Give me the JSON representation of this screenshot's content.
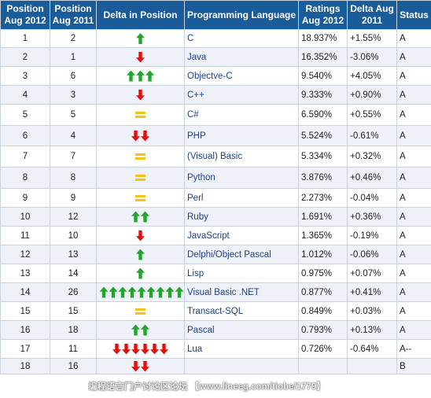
{
  "headers": {
    "pos_2012": "Position Aug 2012",
    "pos_2011": "Position Aug 2011",
    "delta_pos": "Delta in Position",
    "language": "Programming Language",
    "ratings": "Ratings Aug 2012",
    "delta_2011": "Delta Aug 2011",
    "status": "Status"
  },
  "rows": [
    {
      "p12": "1",
      "p11": "2",
      "lang": "C",
      "rating": "18.937%",
      "delta": "+1.55%",
      "status": "A",
      "move": "up",
      "count": 1
    },
    {
      "p12": "2",
      "p11": "1",
      "lang": "Java",
      "rating": "16.352%",
      "delta": "-3.06%",
      "status": "A",
      "move": "down",
      "count": 1
    },
    {
      "p12": "3",
      "p11": "6",
      "lang": "Objectve-C",
      "rating": "9.540%",
      "delta": "+4.05%",
      "status": "A",
      "move": "up",
      "count": 3
    },
    {
      "p12": "4",
      "p11": "3",
      "lang": "C++",
      "rating": "9.333%",
      "delta": "+0.90%",
      "status": "A",
      "move": "down",
      "count": 1
    },
    {
      "p12": "5",
      "p11": "5",
      "lang": "C#",
      "rating": "6.590%",
      "delta": "+0.55%",
      "status": "A",
      "move": "same",
      "count": 1
    },
    {
      "p12": "6",
      "p11": "4",
      "lang": "PHP",
      "rating": "5.524%",
      "delta": "-0.61%",
      "status": "A",
      "move": "down",
      "count": 2
    },
    {
      "p12": "7",
      "p11": "7",
      "lang": "(Visual) Basic",
      "rating": "5.334%",
      "delta": "+0.32%",
      "status": "A",
      "move": "same",
      "count": 1
    },
    {
      "p12": "8",
      "p11": "8",
      "lang": "Python",
      "rating": "3.876%",
      "delta": "+0.46%",
      "status": "A",
      "move": "same",
      "count": 1
    },
    {
      "p12": "9",
      "p11": "9",
      "lang": "Perl",
      "rating": "2.273%",
      "delta": "-0.04%",
      "status": "A",
      "move": "same",
      "count": 1
    },
    {
      "p12": "10",
      "p11": "12",
      "lang": "Ruby",
      "rating": "1.691%",
      "delta": "+0.36%",
      "status": "A",
      "move": "up",
      "count": 2
    },
    {
      "p12": "11",
      "p11": "10",
      "lang": "JavaScript",
      "rating": "1.365%",
      "delta": "-0.19%",
      "status": "A",
      "move": "down",
      "count": 1
    },
    {
      "p12": "12",
      "p11": "13",
      "lang": "Delphi/Object Pascal",
      "rating": "1.012%",
      "delta": "-0.06%",
      "status": "A",
      "move": "up",
      "count": 1
    },
    {
      "p12": "13",
      "p11": "14",
      "lang": "Lisp",
      "rating": "0.975%",
      "delta": "+0.07%",
      "status": "A",
      "move": "up",
      "count": 1
    },
    {
      "p12": "14",
      "p11": "26",
      "lang": "Visual Basic .NET",
      "rating": "0.877%",
      "delta": "+0.41%",
      "status": "A",
      "move": "up",
      "count": 10
    },
    {
      "p12": "15",
      "p11": "15",
      "lang": "Transact-SQL",
      "rating": "0.849%",
      "delta": "+0.03%",
      "status": "A",
      "move": "same",
      "count": 1
    },
    {
      "p12": "16",
      "p11": "18",
      "lang": "Pascal",
      "rating": "0.793%",
      "delta": "+0.13%",
      "status": "A",
      "move": "up",
      "count": 2
    },
    {
      "p12": "17",
      "p11": "11",
      "lang": "Lua",
      "rating": "0.726%",
      "delta": "-0.64%",
      "status": "A--",
      "move": "down",
      "count": 6
    },
    {
      "p12": "18",
      "p11": "16",
      "lang": "",
      "rating": "",
      "delta": "",
      "status": "B",
      "move": "down",
      "count": 2
    }
  ],
  "watermark": "编程语言门户讨论区论坛 【www.lineeg.com/tiobe/1779】"
}
